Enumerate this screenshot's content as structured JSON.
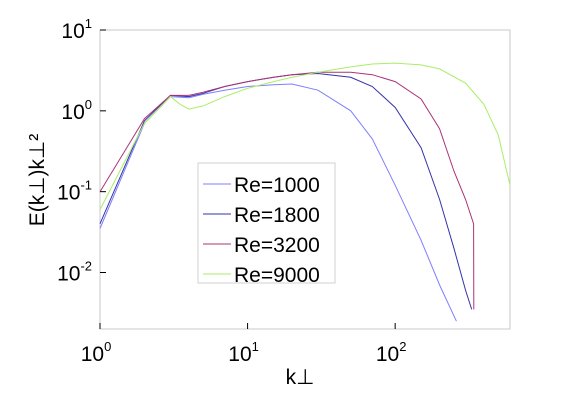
{
  "chart_data": {
    "type": "line",
    "xlabel": "k⊥",
    "ylabel": "E(k⊥)k⊥²",
    "x_scale": "log",
    "y_scale": "log",
    "xlim": [
      1,
      600
    ],
    "ylim": [
      0.002,
      10
    ],
    "x_ticks": [
      {
        "value": 1,
        "base": "10",
        "exp": "0"
      },
      {
        "value": 10,
        "base": "10",
        "exp": "1"
      },
      {
        "value": 100,
        "base": "10",
        "exp": "2"
      }
    ],
    "y_ticks": [
      {
        "value": 0.01,
        "base": "10",
        "exp": "-2"
      },
      {
        "value": 0.1,
        "base": "10",
        "exp": "-1"
      },
      {
        "value": 1,
        "base": "10",
        "exp": "0"
      },
      {
        "value": 10,
        "base": "10",
        "exp": "1"
      }
    ],
    "grid": false,
    "legend_position": "center-left",
    "series": [
      {
        "name": "Re=1000",
        "color": "#7f7fff",
        "x": [
          1,
          2,
          3,
          4,
          5,
          7,
          10,
          15,
          20,
          30,
          50,
          70,
          100,
          150,
          200,
          260
        ],
        "y": [
          0.035,
          0.7,
          1.5,
          1.45,
          1.6,
          1.8,
          2.0,
          2.1,
          2.15,
          1.8,
          1.0,
          0.45,
          0.12,
          0.025,
          0.007,
          0.0025
        ]
      },
      {
        "name": "Re=1800",
        "color": "#3333aa",
        "x": [
          1,
          2,
          3,
          4,
          5,
          7,
          10,
          15,
          20,
          30,
          50,
          70,
          100,
          150,
          200,
          250,
          300,
          330
        ],
        "y": [
          0.04,
          0.75,
          1.55,
          1.5,
          1.65,
          2.0,
          2.3,
          2.6,
          2.8,
          2.9,
          2.6,
          2.0,
          1.1,
          0.35,
          0.08,
          0.02,
          0.006,
          0.0035
        ]
      },
      {
        "name": "Re=3200",
        "color": "#aa3377",
        "x": [
          1,
          2,
          3,
          4,
          5,
          7,
          10,
          15,
          20,
          30,
          50,
          70,
          100,
          150,
          200,
          250,
          300,
          340,
          341
        ],
        "y": [
          0.1,
          0.8,
          1.55,
          1.55,
          1.7,
          2.0,
          2.3,
          2.6,
          2.8,
          3.0,
          3.0,
          2.8,
          2.3,
          1.4,
          0.6,
          0.18,
          0.08,
          0.04,
          0.0035
        ]
      },
      {
        "name": "Re=9000",
        "color": "#aaee66",
        "x": [
          1,
          2,
          3,
          3.5,
          4,
          5,
          7,
          10,
          15,
          20,
          30,
          50,
          70,
          100,
          150,
          200,
          300,
          400,
          500,
          600
        ],
        "y": [
          0.06,
          0.7,
          1.5,
          1.2,
          1.05,
          1.15,
          1.5,
          1.9,
          2.3,
          2.6,
          3.0,
          3.5,
          3.8,
          3.9,
          3.7,
          3.3,
          2.2,
          1.2,
          0.5,
          0.12
        ]
      }
    ]
  }
}
